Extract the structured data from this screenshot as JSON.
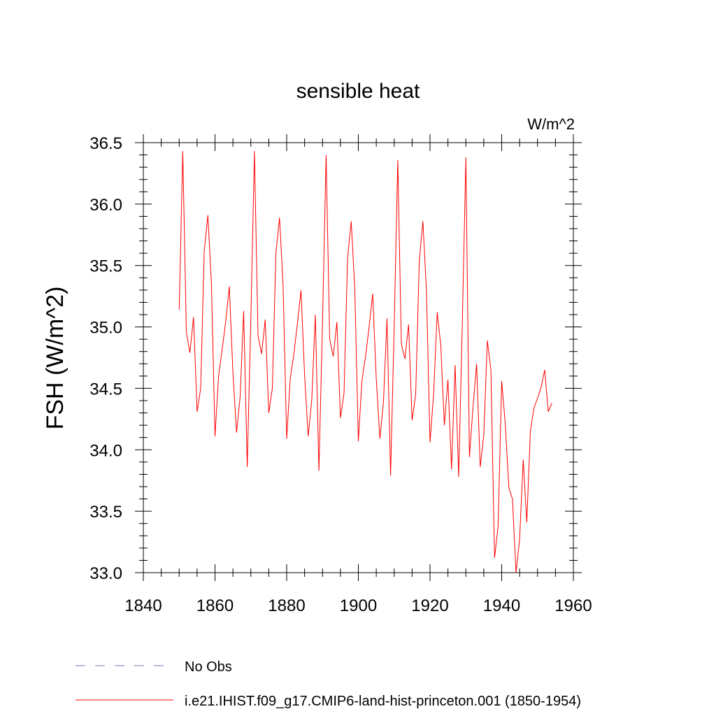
{
  "chart_data": {
    "type": "line",
    "title": "sensible heat",
    "units_label": "W/m^2",
    "ylabel": "FSH  (W/m^2)",
    "xlabel": "",
    "xlim": [
      1840,
      1960
    ],
    "ylim": [
      33.0,
      36.5
    ],
    "x_ticks": [
      1840,
      1860,
      1880,
      1900,
      1920,
      1940,
      1960
    ],
    "x_tick_labels": [
      "1840",
      "1860",
      "1880",
      "1900",
      "1920",
      "1940",
      "1960"
    ],
    "y_ticks": [
      33.0,
      33.5,
      34.0,
      34.5,
      35.0,
      35.5,
      36.0,
      36.5
    ],
    "y_tick_labels": [
      "33.0",
      "33.5",
      "34.0",
      "34.5",
      "35.0",
      "35.5",
      "36.0",
      "36.5"
    ],
    "grid": false,
    "legend_position": "bottom",
    "series": [
      {
        "name": "i.e21.IHIST.f09_g17.CMIP6-land-hist-princeton.001 (1850-1954)",
        "color": "#ff0000",
        "style": "solid",
        "x": [
          1850,
          1851,
          1852,
          1853,
          1854,
          1855,
          1856,
          1857,
          1858,
          1859,
          1860,
          1861,
          1862,
          1863,
          1864,
          1865,
          1866,
          1867,
          1868,
          1869,
          1870,
          1871,
          1872,
          1873,
          1874,
          1875,
          1876,
          1877,
          1878,
          1879,
          1880,
          1881,
          1882,
          1883,
          1884,
          1885,
          1886,
          1887,
          1888,
          1889,
          1890,
          1891,
          1892,
          1893,
          1894,
          1895,
          1896,
          1897,
          1898,
          1899,
          1900,
          1901,
          1902,
          1903,
          1904,
          1905,
          1906,
          1907,
          1908,
          1909,
          1910,
          1911,
          1912,
          1913,
          1914,
          1915,
          1916,
          1917,
          1918,
          1919,
          1920,
          1921,
          1922,
          1923,
          1924,
          1925,
          1926,
          1927,
          1928,
          1929,
          1930,
          1931,
          1932,
          1933,
          1934,
          1935,
          1936,
          1937,
          1938,
          1939,
          1940,
          1941,
          1942,
          1943,
          1944,
          1945,
          1946,
          1947,
          1948,
          1949,
          1950,
          1951,
          1952,
          1953,
          1954
        ],
        "values": [
          35.14,
          36.43,
          34.96,
          34.79,
          35.08,
          34.31,
          34.5,
          35.62,
          35.91,
          35.35,
          34.11,
          34.6,
          34.82,
          35.05,
          35.33,
          34.63,
          34.14,
          34.43,
          35.13,
          33.86,
          35.08,
          36.43,
          34.93,
          34.78,
          35.06,
          34.3,
          34.5,
          35.6,
          35.89,
          35.33,
          34.09,
          34.58,
          34.78,
          35.03,
          35.3,
          34.61,
          34.11,
          34.41,
          35.1,
          33.83,
          35.05,
          36.4,
          34.9,
          34.76,
          35.04,
          34.26,
          34.46,
          35.56,
          35.86,
          35.31,
          34.07,
          34.56,
          34.76,
          35.0,
          35.27,
          34.58,
          34.09,
          34.39,
          35.07,
          33.79,
          35.02,
          36.36,
          34.86,
          34.74,
          35.02,
          34.24,
          34.45,
          35.53,
          35.86,
          35.29,
          34.06,
          34.45,
          35.12,
          34.85,
          34.2,
          34.57,
          33.84,
          34.69,
          33.78,
          35.01,
          36.38,
          33.94,
          34.35,
          34.7,
          33.86,
          34.12,
          34.89,
          34.65,
          33.12,
          33.38,
          34.56,
          34.21,
          33.69,
          33.6,
          33.0,
          33.27,
          33.92,
          33.41,
          34.15,
          34.34,
          34.42,
          34.51,
          34.65,
          34.31,
          34.38
        ]
      }
    ],
    "legend": [
      {
        "label": "No Obs",
        "color": "#7d6fb0",
        "style": "dashed"
      },
      {
        "label": "i.e21.IHIST.f09_g17.CMIP6-land-hist-princeton.001 (1850-1954)",
        "color": "#ff0000",
        "style": "solid"
      }
    ]
  }
}
